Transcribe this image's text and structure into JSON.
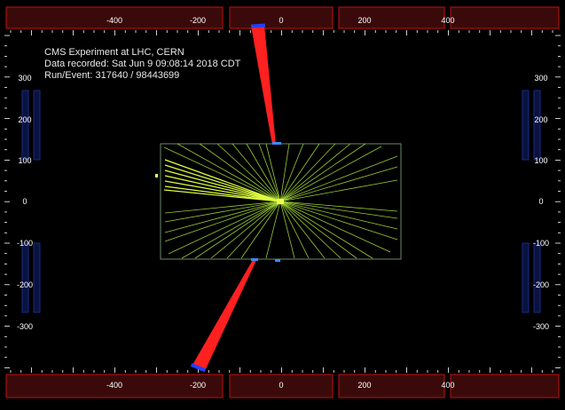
{
  "info": {
    "experiment": "CMS Experiment at LHC, CERN",
    "recorded": "Data recorded: Sat Jun  9 09:08:14 2018 CDT",
    "run_event": "Run/Event: 317640 / 98443699"
  },
  "axes": {
    "top_labels": [
      "-400",
      "-200",
      "0",
      "200",
      "400"
    ],
    "bottom_labels": [
      "-400",
      "-200",
      "0",
      "200",
      "400"
    ],
    "left_labels": [
      "300",
      "200",
      "100",
      "0",
      "-100",
      "-200",
      "-300"
    ],
    "right_labels": [
      "300",
      "200",
      "100",
      "0",
      "-100",
      "-200",
      "-300"
    ]
  },
  "colors": {
    "background": "#000000",
    "tracks": "#9acd32",
    "track_bright": "#e0ff40",
    "energy_towers": "#ff2020",
    "muon_chambers": "#3a0a0a",
    "muon_chamber_border": "#c01010",
    "barrel_detector": "#1a2a80",
    "tracker_outline": "#6a8a6a"
  }
}
